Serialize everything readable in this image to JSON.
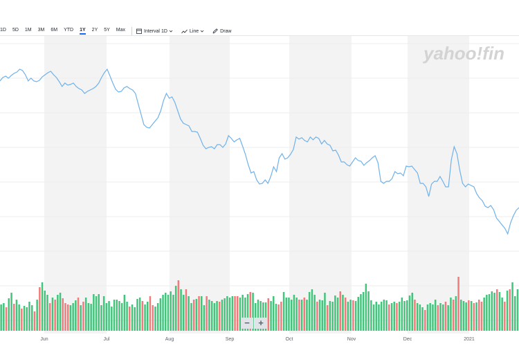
{
  "toolbar": {
    "ranges": [
      "1D",
      "5D",
      "1M",
      "3M",
      "6M",
      "YTD",
      "1Y",
      "2Y",
      "5Y",
      "Max"
    ],
    "active_range": "1Y",
    "interval_label": "Interval",
    "interval_value": "1D",
    "line_label": "Line",
    "draw_label": "Draw"
  },
  "watermark": "yahoo!fin",
  "zoom": {
    "zoom_out_label": "−",
    "zoom_in_label": "+"
  },
  "colors": {
    "line": "#6fb1ea",
    "volume_up": "#42c47a",
    "volume_down": "#f07b7b",
    "band": "#f3f3f3",
    "grid": "#ececec"
  },
  "chart_data": {
    "type": "line",
    "x_tick_labels": [
      "Jun",
      "Jul",
      "Aug",
      "Sep",
      "Oct",
      "Nov",
      "Dec",
      "2021"
    ],
    "grid": true,
    "price_series": [
      300,
      304,
      312,
      322,
      338,
      330,
      325,
      320,
      315,
      303,
      297,
      300,
      298,
      290,
      286,
      280,
      270,
      268,
      266,
      270,
      265,
      246,
      222,
      212,
      231,
      270,
      270,
      262,
      255,
      262,
      262,
      266,
      284,
      270,
      265,
      265,
      250,
      245,
      240,
      241,
      240,
      254,
      250,
      251,
      248,
      258,
      262,
      262,
      265,
      262,
      235,
      225,
      228,
      232,
      235,
      239,
      233,
      232,
      228,
      234,
      240,
      238,
      234,
      234,
      224,
      217,
      218,
      210,
      208,
      203,
      208,
      200,
      198,
      202,
      198,
      205,
      203,
      199,
      201,
      198,
      216,
      223,
      228,
      230,
      222,
      228,
      248,
      241,
      255,
      265,
      260,
      265,
      266,
      260,
      248,
      250,
      238,
      223,
      211,
      200,
      202,
      205,
      200,
      196,
      208,
      213,
      209,
      209,
      215,
      212,
      213,
      215,
      210,
      200,
      191,
      190,
      190,
      182,
      180,
      178,
      172,
      160,
      148,
      140,
      142,
      135,
      145,
      160,
      170,
      175,
      180,
      185,
      184,
      180,
      165,
      150,
      135,
      130,
      128,
      125,
      127,
      132,
      133,
      129,
      120,
      110,
      100,
      105,
      112,
      120,
      125,
      128,
      130,
      132,
      135,
      130,
      128,
      125,
      120,
      122,
      123,
      120,
      125,
      118,
      112,
      108,
      103,
      105,
      108,
      111,
      116,
      118,
      117,
      113,
      117,
      108,
      102,
      100,
      104,
      106,
      109,
      113,
      110,
      112,
      117
    ],
    "volume_series": [
      {
        "v": 38,
        "up": true
      },
      {
        "v": 40,
        "up": true
      },
      {
        "v": 34,
        "up": false
      },
      {
        "v": 47,
        "up": true
      },
      {
        "v": 55,
        "up": true
      },
      {
        "v": 39,
        "up": false
      },
      {
        "v": 45,
        "up": true
      },
      {
        "v": 38,
        "up": true
      },
      {
        "v": 32,
        "up": false
      },
      {
        "v": 36,
        "up": true
      },
      {
        "v": 34,
        "up": true
      },
      {
        "v": 42,
        "up": true
      },
      {
        "v": 37,
        "up": true
      },
      {
        "v": 28,
        "up": false
      },
      {
        "v": 45,
        "up": true
      },
      {
        "v": 63,
        "up": false
      },
      {
        "v": 70,
        "up": true
      },
      {
        "v": 58,
        "up": true
      },
      {
        "v": 52,
        "up": true
      },
      {
        "v": 40,
        "up": false
      },
      {
        "v": 48,
        "up": true
      },
      {
        "v": 45,
        "up": false
      },
      {
        "v": 52,
        "up": true
      },
      {
        "v": 55,
        "up": true
      },
      {
        "v": 47,
        "up": false
      },
      {
        "v": 40,
        "up": false
      },
      {
        "v": 38,
        "up": false
      },
      {
        "v": 37,
        "up": true
      },
      {
        "v": 40,
        "up": true
      },
      {
        "v": 44,
        "up": true
      },
      {
        "v": 48,
        "up": false
      },
      {
        "v": 37,
        "up": true
      },
      {
        "v": 42,
        "up": false
      },
      {
        "v": 48,
        "up": true
      },
      {
        "v": 40,
        "up": true
      },
      {
        "v": 39,
        "up": true
      },
      {
        "v": 53,
        "up": true
      },
      {
        "v": 50,
        "up": true
      },
      {
        "v": 53,
        "up": true
      },
      {
        "v": 37,
        "up": true
      },
      {
        "v": 50,
        "up": true
      },
      {
        "v": 40,
        "up": true
      },
      {
        "v": 43,
        "up": true
      },
      {
        "v": 35,
        "up": true
      },
      {
        "v": 45,
        "up": true
      },
      {
        "v": 45,
        "up": true
      },
      {
        "v": 43,
        "up": true
      },
      {
        "v": 40,
        "up": true
      },
      {
        "v": 52,
        "up": true
      },
      {
        "v": 42,
        "up": true
      },
      {
        "v": 35,
        "up": false
      },
      {
        "v": 38,
        "up": true
      },
      {
        "v": 34,
        "up": true
      },
      {
        "v": 46,
        "up": true
      },
      {
        "v": 48,
        "up": true
      },
      {
        "v": 43,
        "up": false
      },
      {
        "v": 38,
        "up": true
      },
      {
        "v": 42,
        "up": true
      },
      {
        "v": 50,
        "up": false
      },
      {
        "v": 37,
        "up": false
      },
      {
        "v": 35,
        "up": true
      },
      {
        "v": 40,
        "up": true
      },
      {
        "v": 47,
        "up": true
      },
      {
        "v": 52,
        "up": true
      },
      {
        "v": 55,
        "up": true
      },
      {
        "v": 52,
        "up": true
      },
      {
        "v": 57,
        "up": true
      },
      {
        "v": 52,
        "up": true
      },
      {
        "v": 65,
        "up": true
      },
      {
        "v": 73,
        "up": false
      },
      {
        "v": 60,
        "up": true
      },
      {
        "v": 52,
        "up": true
      },
      {
        "v": 60,
        "up": false
      },
      {
        "v": 50,
        "up": true
      },
      {
        "v": 40,
        "up": true
      },
      {
        "v": 45,
        "up": false
      },
      {
        "v": 46,
        "up": true
      },
      {
        "v": 50,
        "up": false
      },
      {
        "v": 50,
        "up": true
      },
      {
        "v": 37,
        "up": true
      },
      {
        "v": 50,
        "up": false
      },
      {
        "v": 45,
        "up": true
      },
      {
        "v": 43,
        "up": true
      },
      {
        "v": 40,
        "up": true
      },
      {
        "v": 43,
        "up": true
      },
      {
        "v": 42,
        "up": false
      },
      {
        "v": 45,
        "up": true
      },
      {
        "v": 47,
        "up": true
      },
      {
        "v": 50,
        "up": true
      },
      {
        "v": 48,
        "up": true
      },
      {
        "v": 50,
        "up": true
      },
      {
        "v": 50,
        "up": false
      },
      {
        "v": 50,
        "up": false
      },
      {
        "v": 48,
        "up": true
      },
      {
        "v": 52,
        "up": true
      },
      {
        "v": 48,
        "up": true
      },
      {
        "v": 53,
        "up": true
      },
      {
        "v": 56,
        "up": false
      },
      {
        "v": 55,
        "up": true
      },
      {
        "v": 40,
        "up": true
      },
      {
        "v": 45,
        "up": true
      },
      {
        "v": 43,
        "up": true
      },
      {
        "v": 41,
        "up": true
      },
      {
        "v": 41,
        "up": true
      },
      {
        "v": 47,
        "up": false
      },
      {
        "v": 43,
        "up": true
      },
      {
        "v": 50,
        "up": true
      },
      {
        "v": 39,
        "up": true
      },
      {
        "v": 38,
        "up": false
      },
      {
        "v": 42,
        "up": false
      },
      {
        "v": 56,
        "up": true
      },
      {
        "v": 48,
        "up": true
      },
      {
        "v": 48,
        "up": true
      },
      {
        "v": 45,
        "up": true
      },
      {
        "v": 52,
        "up": true
      },
      {
        "v": 48,
        "up": true
      },
      {
        "v": 45,
        "up": false
      },
      {
        "v": 45,
        "up": true
      },
      {
        "v": 48,
        "up": false
      },
      {
        "v": 45,
        "up": true
      },
      {
        "v": 56,
        "up": true
      },
      {
        "v": 60,
        "up": true
      },
      {
        "v": 52,
        "up": true
      },
      {
        "v": 42,
        "up": false
      },
      {
        "v": 45,
        "up": true
      },
      {
        "v": 44,
        "up": true
      },
      {
        "v": 55,
        "up": true
      },
      {
        "v": 37,
        "up": false
      },
      {
        "v": 43,
        "up": true
      },
      {
        "v": 42,
        "up": true
      },
      {
        "v": 51,
        "up": true
      },
      {
        "v": 48,
        "up": true
      },
      {
        "v": 57,
        "up": false
      },
      {
        "v": 52,
        "up": true
      },
      {
        "v": 48,
        "up": false
      },
      {
        "v": 42,
        "up": true
      },
      {
        "v": 45,
        "up": true
      },
      {
        "v": 44,
        "up": false
      },
      {
        "v": 43,
        "up": true
      },
      {
        "v": 49,
        "up": true
      },
      {
        "v": 53,
        "up": true
      },
      {
        "v": 56,
        "up": true
      },
      {
        "v": 68,
        "up": true
      },
      {
        "v": 57,
        "up": true
      },
      {
        "v": 44,
        "up": true
      },
      {
        "v": 38,
        "up": true
      },
      {
        "v": 42,
        "up": true
      },
      {
        "v": 38,
        "up": true
      },
      {
        "v": 42,
        "up": true
      },
      {
        "v": 45,
        "up": true
      },
      {
        "v": 44,
        "up": true
      },
      {
        "v": 38,
        "up": false
      },
      {
        "v": 40,
        "up": true
      },
      {
        "v": 42,
        "up": true
      },
      {
        "v": 40,
        "up": false
      },
      {
        "v": 42,
        "up": true
      },
      {
        "v": 48,
        "up": true
      },
      {
        "v": 43,
        "up": true
      },
      {
        "v": 44,
        "up": true
      },
      {
        "v": 51,
        "up": true
      },
      {
        "v": 55,
        "up": true
      },
      {
        "v": 45,
        "up": false
      },
      {
        "v": 40,
        "up": true
      },
      {
        "v": 38,
        "up": true
      },
      {
        "v": 34,
        "up": true
      },
      {
        "v": 30,
        "up": false
      },
      {
        "v": 38,
        "up": true
      },
      {
        "v": 40,
        "up": true
      },
      {
        "v": 38,
        "up": true
      },
      {
        "v": 45,
        "up": true
      },
      {
        "v": 37,
        "up": false
      },
      {
        "v": 40,
        "up": true
      },
      {
        "v": 38,
        "up": true
      },
      {
        "v": 42,
        "up": false
      },
      {
        "v": 37,
        "up": true
      },
      {
        "v": 48,
        "up": true
      },
      {
        "v": 45,
        "up": false
      },
      {
        "v": 50,
        "up": true
      },
      {
        "v": 78,
        "up": false
      },
      {
        "v": 45,
        "up": true
      },
      {
        "v": 43,
        "up": true
      },
      {
        "v": 41,
        "up": true
      },
      {
        "v": 44,
        "up": false
      },
      {
        "v": 43,
        "up": true
      },
      {
        "v": 40,
        "up": false
      },
      {
        "v": 41,
        "up": true
      },
      {
        "v": 45,
        "up": false
      },
      {
        "v": 42,
        "up": false
      },
      {
        "v": 48,
        "up": true
      },
      {
        "v": 52,
        "up": true
      },
      {
        "v": 53,
        "up": true
      },
      {
        "v": 57,
        "up": true
      },
      {
        "v": 55,
        "up": true
      },
      {
        "v": 60,
        "up": false
      },
      {
        "v": 56,
        "up": true
      },
      {
        "v": 48,
        "up": true
      },
      {
        "v": 42,
        "up": false
      },
      {
        "v": 58,
        "up": true
      },
      {
        "v": 60,
        "up": false
      },
      {
        "v": 70,
        "up": true
      },
      {
        "v": 50,
        "up": true
      },
      {
        "v": 60,
        "up": true
      }
    ]
  }
}
